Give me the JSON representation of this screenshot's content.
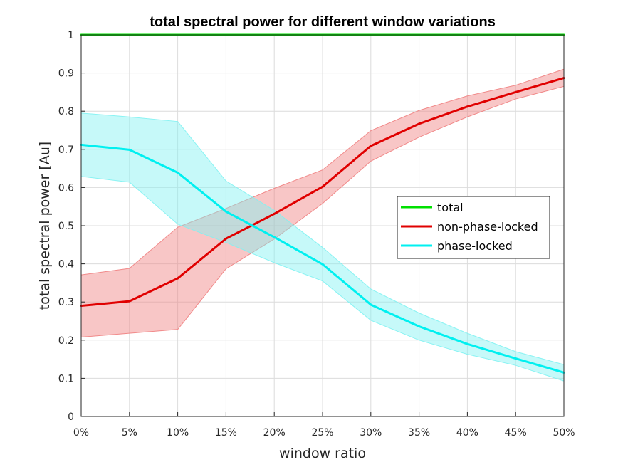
{
  "chart_data": {
    "type": "line",
    "title": "total spectral power for different window variations",
    "xlabel": "window ratio",
    "ylabel": "total spectral power [Au]",
    "x": [
      0,
      5,
      10,
      15,
      20,
      25,
      30,
      35,
      40,
      45,
      50
    ],
    "x_tick_labels": [
      "0%",
      "5%",
      "10%",
      "15%",
      "20%",
      "25%",
      "30%",
      "35%",
      "40%",
      "45%",
      "50%"
    ],
    "xlim": [
      0,
      50
    ],
    "ylim": [
      0,
      1
    ],
    "y_ticks": [
      0,
      0.1,
      0.2,
      0.3,
      0.4,
      0.5,
      0.6,
      0.7,
      0.8,
      0.9,
      1
    ],
    "y_tick_labels": [
      "0",
      "0.1",
      "0.2",
      "0.3",
      "0.4",
      "0.5",
      "0.6",
      "0.7",
      "0.8",
      "0.9",
      "1"
    ],
    "grid": true,
    "legend_position": "right",
    "series": [
      {
        "name": "total",
        "color": "#00e000",
        "values": [
          1,
          1,
          1,
          1,
          1,
          1,
          1,
          1,
          1,
          1,
          1
        ]
      },
      {
        "name": "non-phase-locked",
        "color": "#e00000",
        "band_color": "#f08080",
        "values": [
          0.29,
          0.302,
          0.362,
          0.466,
          0.531,
          0.602,
          0.709,
          0.767,
          0.812,
          0.85,
          0.887
        ],
        "lower": [
          0.208,
          0.218,
          0.228,
          0.387,
          0.465,
          0.558,
          0.669,
          0.732,
          0.785,
          0.832,
          0.865
        ],
        "upper": [
          0.371,
          0.388,
          0.496,
          0.545,
          0.598,
          0.646,
          0.749,
          0.802,
          0.84,
          0.868,
          0.91
        ]
      },
      {
        "name": "phase-locked",
        "color": "#00f0f0",
        "band_color": "#80f2f2",
        "values": [
          0.712,
          0.699,
          0.639,
          0.537,
          0.47,
          0.399,
          0.293,
          0.236,
          0.19,
          0.152,
          0.115
        ],
        "lower": [
          0.629,
          0.614,
          0.504,
          0.456,
          0.403,
          0.355,
          0.252,
          0.2,
          0.163,
          0.134,
          0.093
        ],
        "upper": [
          0.795,
          0.785,
          0.773,
          0.617,
          0.54,
          0.443,
          0.334,
          0.271,
          0.218,
          0.17,
          0.136
        ]
      }
    ]
  }
}
